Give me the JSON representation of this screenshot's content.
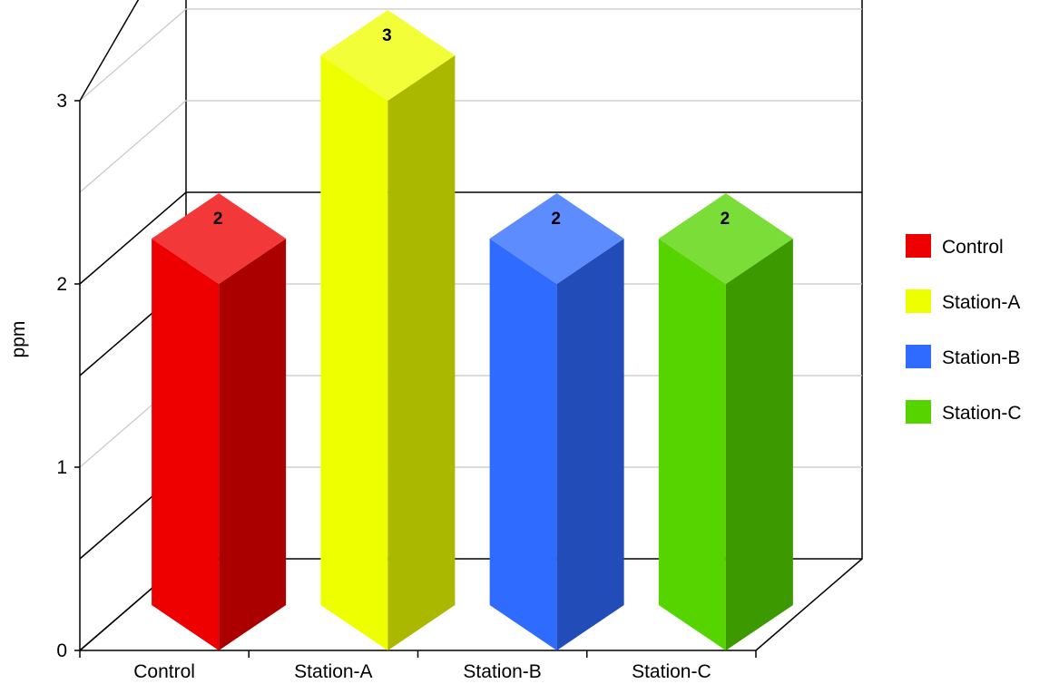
{
  "chart_data": {
    "type": "bar",
    "style": "3d",
    "categories": [
      "Control",
      "Station-A",
      "Station-B",
      "Station-C"
    ],
    "values": [
      2,
      3,
      2,
      2
    ],
    "data_labels": [
      "2",
      "3",
      "2",
      "2"
    ],
    "ylabel": "ppm",
    "xlabel": "",
    "ylim": [
      0,
      3.5
    ],
    "yticks": [
      "0",
      "1",
      "2",
      "3"
    ],
    "grid": true,
    "legend": {
      "position": "right",
      "entries": [
        "Control",
        "Station-A",
        "Station-B",
        "Station-C"
      ]
    },
    "colors": {
      "Control": "#ee0000",
      "Station-A": "#eeff00",
      "Station-B": "#2f6bff",
      "Station-C": "#55d400"
    }
  }
}
